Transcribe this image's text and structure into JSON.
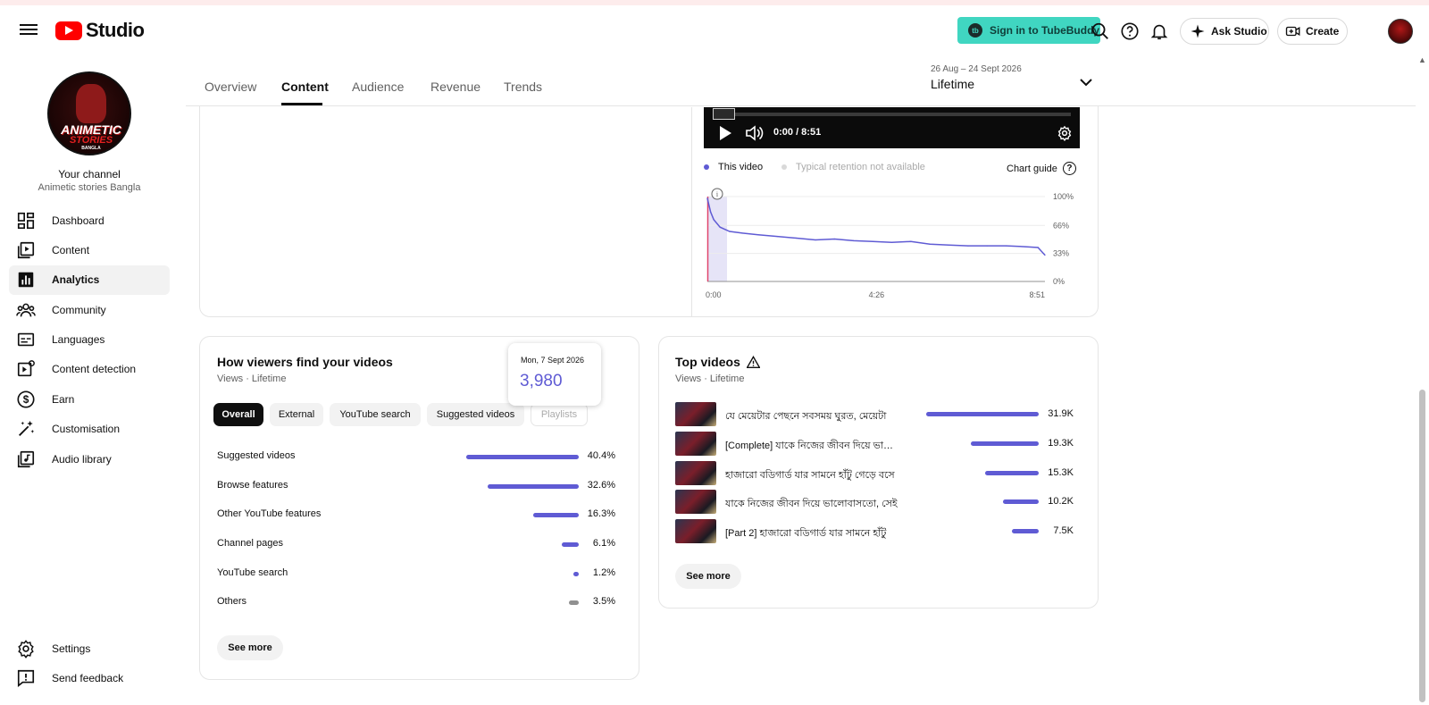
{
  "header": {
    "logo_text": "Studio",
    "tubebuddy_label": "Sign in to TubeBuddy",
    "ask_studio_label": "Ask Studio",
    "create_label": "Create"
  },
  "sidebar": {
    "your_channel_label": "Your channel",
    "channel_name": "Animetic stories Bangla",
    "avatar_text": [
      "ANIMETIC",
      "STORIES",
      "BANGLA"
    ],
    "items": [
      {
        "label": "Dashboard",
        "icon": "dashboard-icon"
      },
      {
        "label": "Content",
        "icon": "content-icon"
      },
      {
        "label": "Analytics",
        "icon": "analytics-icon",
        "active": true
      },
      {
        "label": "Community",
        "icon": "community-icon"
      },
      {
        "label": "Languages",
        "icon": "languages-icon"
      },
      {
        "label": "Content detection",
        "icon": "content-detection-icon"
      },
      {
        "label": "Earn",
        "icon": "earn-icon"
      },
      {
        "label": "Customisation",
        "icon": "customisation-icon"
      },
      {
        "label": "Audio library",
        "icon": "audio-library-icon"
      }
    ],
    "bottom_items": [
      {
        "label": "Settings",
        "icon": "settings-icon"
      },
      {
        "label": "Send feedback",
        "icon": "feedback-icon"
      }
    ]
  },
  "tabs": [
    {
      "label": "Overview"
    },
    {
      "label": "Content",
      "active": true
    },
    {
      "label": "Audience"
    },
    {
      "label": "Revenue"
    },
    {
      "label": "Trends"
    }
  ],
  "date_range": {
    "range": "26 Aug – 24 Sept 2026",
    "label": "Lifetime"
  },
  "retention": {
    "player_time": "0:00 / 8:51",
    "legend_this_video": "This video",
    "legend_typical": "Typical retention not available",
    "chart_guide_label": "Chart guide",
    "colors": {
      "line": "#5f5bd4",
      "marker": "#e0446c",
      "highlight": "#e6e4f7"
    }
  },
  "chart_data": {
    "type": "line",
    "title": "",
    "xlabel": "",
    "ylabel": "",
    "x_ticks": [
      "0:00",
      "4:26",
      "8:51"
    ],
    "y_ticks": [
      "100%",
      "66%",
      "33%",
      "0%"
    ],
    "ylim": [
      0,
      100
    ],
    "xlim_seconds": [
      0,
      531
    ],
    "series": [
      {
        "name": "This video",
        "x_seconds": [
          0,
          5,
          10,
          20,
          35,
          55,
          80,
          110,
          140,
          170,
          200,
          230,
          260,
          290,
          320,
          350,
          380,
          410,
          440,
          470,
          500,
          520,
          531
        ],
        "y_percent": [
          98,
          82,
          73,
          64,
          59,
          57,
          55,
          53,
          51,
          49,
          50,
          48,
          47,
          46,
          47,
          44,
          43,
          42,
          42,
          42,
          41,
          40,
          31
        ]
      }
    ]
  },
  "traffic": {
    "title": "How viewers find your videos",
    "subtitle": "Views · Lifetime",
    "tooltip_date": "Mon, 7 Sept 2026",
    "tooltip_value": "3,980",
    "chips": [
      {
        "label": "Overall",
        "state": "active"
      },
      {
        "label": "External",
        "state": "normal"
      },
      {
        "label": "YouTube search",
        "state": "normal"
      },
      {
        "label": "Suggested videos",
        "state": "normal"
      },
      {
        "label": "Playlists",
        "state": "disabled"
      }
    ],
    "sources": [
      {
        "label": "Suggested videos",
        "value": "40.4%",
        "fraction": 0.404,
        "color": "#5f5bd4"
      },
      {
        "label": "Browse features",
        "value": "32.6%",
        "fraction": 0.326,
        "color": "#5f5bd4"
      },
      {
        "label": "Other YouTube features",
        "value": "16.3%",
        "fraction": 0.163,
        "color": "#5f5bd4"
      },
      {
        "label": "Channel pages",
        "value": "6.1%",
        "fraction": 0.061,
        "color": "#5f5bd4"
      },
      {
        "label": "YouTube search",
        "value": "1.2%",
        "fraction": 0.012,
        "color": "#5f5bd4"
      },
      {
        "label": "Others",
        "value": "3.5%",
        "fraction": 0.035,
        "color": "#909090"
      }
    ],
    "see_more_label": "See more"
  },
  "top_videos": {
    "title": "Top videos",
    "subtitle": "Views · Lifetime",
    "videos": [
      {
        "title": "যে মেয়েটার পেছনে সবসময় ঘুরত, মেয়েটা",
        "views": "31.9K",
        "fraction": 1.0
      },
      {
        "title": "[Complete] যাকে নিজের জীবন দিয়ে ভালোবাসতো",
        "views": "19.3K",
        "fraction": 0.605
      },
      {
        "title": "হাজারো বডিগার্ড যার সামনে হাঁটু গেড়ে বসে",
        "views": "15.3K",
        "fraction": 0.48
      },
      {
        "title": "যাকে নিজের জীবন দিয়ে ভালোবাসতো, সেই",
        "views": "10.2K",
        "fraction": 0.32
      },
      {
        "title": "[Part 2] হাজারো বডিগার্ড যার সামনে হাঁটু",
        "views": "7.5K",
        "fraction": 0.235
      }
    ],
    "see_more_label": "See more"
  }
}
